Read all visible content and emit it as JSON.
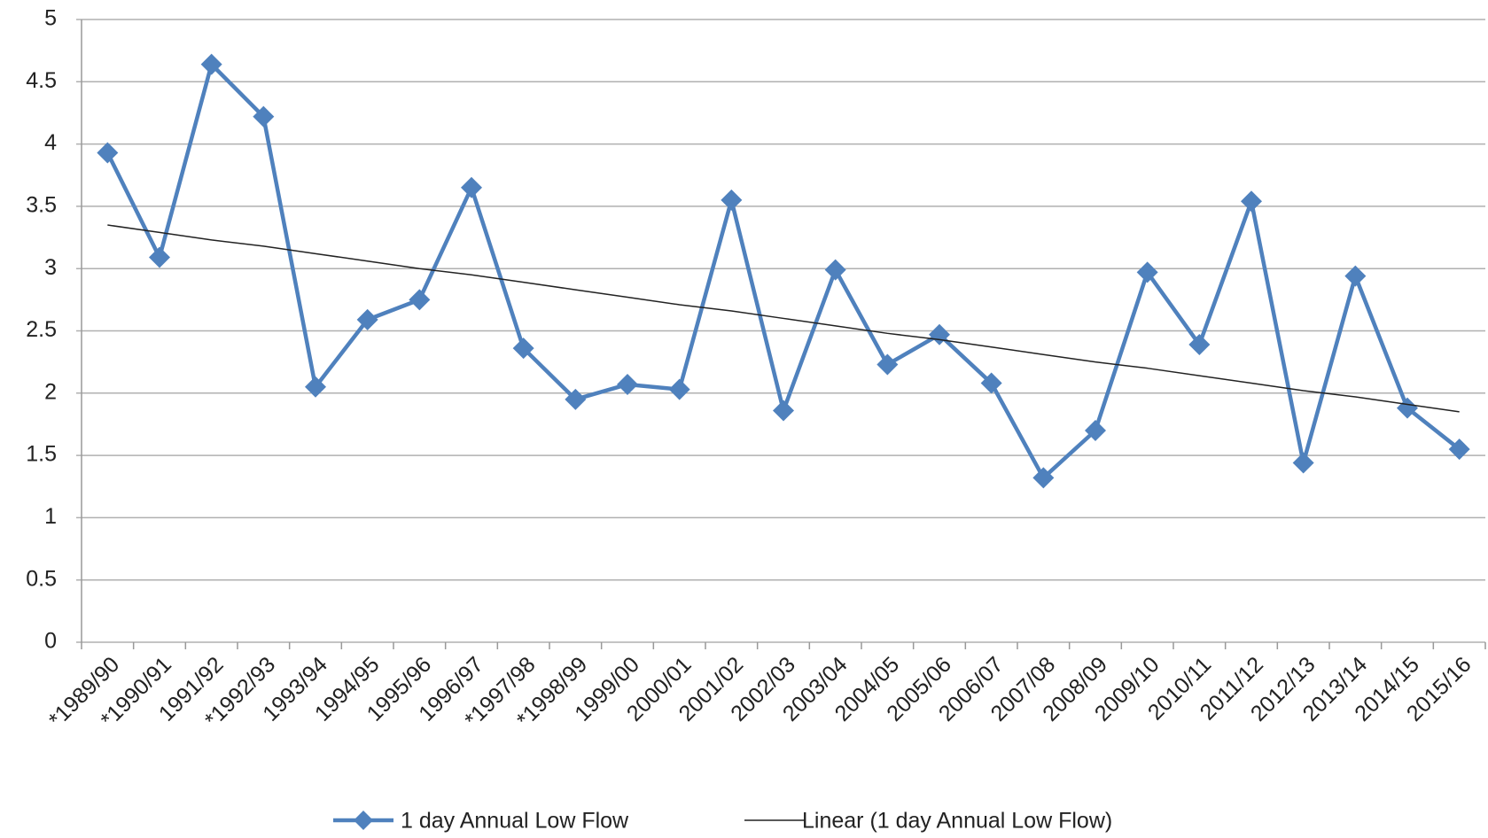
{
  "chart_data": {
    "type": "line",
    "categories": [
      "*1989/90",
      "*1990/91",
      "1991/92",
      "*1992/93",
      "1993/94",
      "1994/95",
      "1995/96",
      "1996/97",
      "*1997/98",
      "*1998/99",
      "1999/00",
      "2000/01",
      "2001/02",
      "2002/03",
      "2003/04",
      "2004/05",
      "2005/06",
      "2006/07",
      "2007/08",
      "2008/09",
      "2009/10",
      "2010/11",
      "2011/12",
      "2012/13",
      "2013/14",
      "2014/15",
      "2015/16"
    ],
    "series": [
      {
        "name": "1 day Annual Low Flow",
        "color": "#4f81bd",
        "marker": "diamond",
        "values": [
          3.93,
          3.09,
          4.64,
          4.22,
          2.05,
          2.59,
          2.75,
          3.65,
          2.36,
          1.95,
          2.07,
          2.03,
          3.55,
          1.86,
          2.99,
          2.23,
          2.47,
          2.08,
          1.32,
          1.7,
          2.97,
          2.39,
          3.54,
          1.44,
          2.94,
          1.88,
          1.55
        ]
      },
      {
        "name": "Linear (1 day Annual Low Flow)",
        "color": "#222222",
        "marker": "none",
        "values": [
          3.35,
          3.29,
          3.23,
          3.18,
          3.12,
          3.06,
          3.0,
          2.95,
          2.89,
          2.83,
          2.77,
          2.71,
          2.66,
          2.6,
          2.54,
          2.48,
          2.43,
          2.37,
          2.31,
          2.25,
          2.2,
          2.14,
          2.08,
          2.02,
          1.97,
          1.91,
          1.85
        ]
      }
    ],
    "ylim": [
      0,
      5
    ],
    "yticks": [
      0,
      0.5,
      1,
      1.5,
      2,
      2.5,
      3,
      3.5,
      4,
      4.5,
      5
    ],
    "grid": true,
    "legend": "bottom"
  }
}
